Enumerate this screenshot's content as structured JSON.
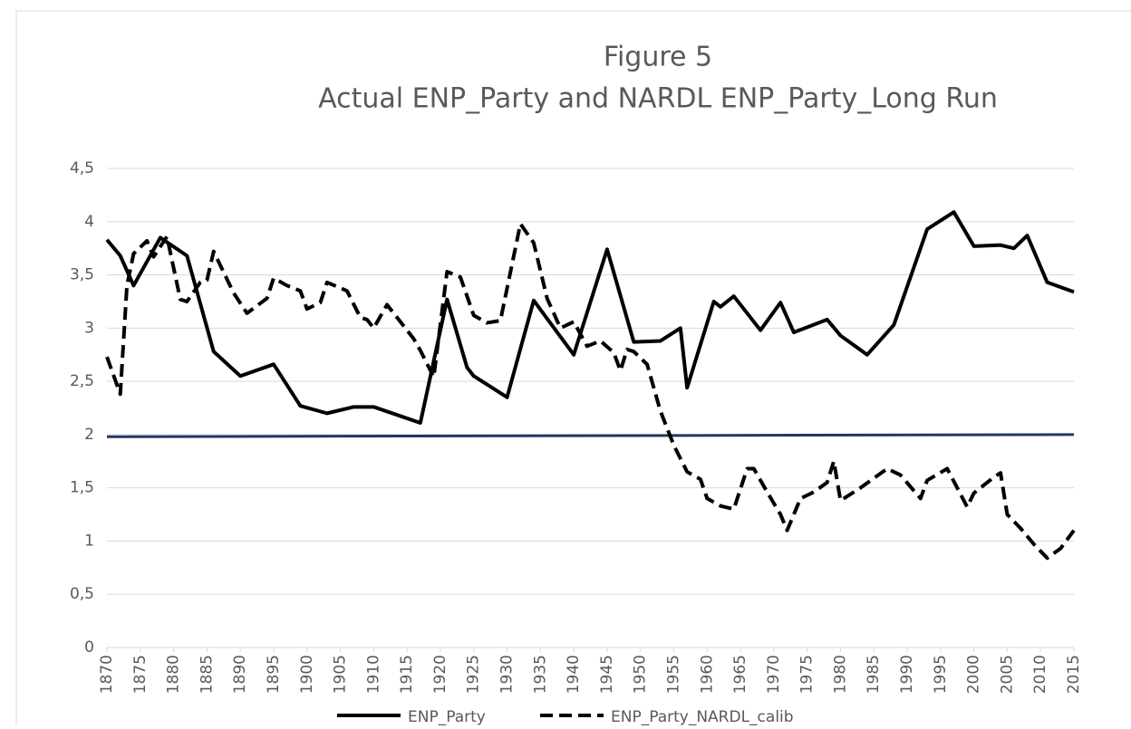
{
  "chart_data": {
    "type": "line",
    "title": "Figure 5",
    "subtitle": "Actual ENP_Party and NARDL ENP_Party_Long Run",
    "xlim": [
      1870,
      2015
    ],
    "xticks": [
      1870,
      1875,
      1880,
      1885,
      1890,
      1895,
      1900,
      1905,
      1910,
      1915,
      1920,
      1925,
      1930,
      1935,
      1940,
      1945,
      1950,
      1955,
      1960,
      1965,
      1970,
      1975,
      1980,
      1985,
      1990,
      1995,
      2000,
      2005,
      2010,
      2015
    ],
    "ylim": [
      0,
      4.5
    ],
    "yticks": [
      0,
      {
        "value": 0.5,
        "label": "0,5"
      },
      1,
      {
        "value": 1.5,
        "label": "1,5"
      },
      2,
      {
        "value": 2.5,
        "label": "2,5"
      },
      3,
      {
        "value": 3.5,
        "label": "3,5"
      },
      4,
      {
        "value": 4.5,
        "label": "4,5"
      }
    ],
    "grid": true,
    "legend": "bottom",
    "series": [
      {
        "name": "ENP_Party",
        "color": "#000000",
        "dash": false,
        "x": [
          1870,
          1872,
          1874,
          1878,
          1882,
          1886,
          1890,
          1895,
          1899,
          1903,
          1907,
          1910,
          1917,
          1921,
          1924,
          1925,
          1930,
          1934,
          1940,
          1945,
          1949,
          1953,
          1956,
          1957,
          1961,
          1962,
          1964,
          1968,
          1971,
          1973,
          1978,
          1980,
          1984,
          1988,
          1993,
          1997,
          2000,
          2004,
          2006,
          2008,
          2011,
          2015
        ],
        "values": [
          3.83,
          3.68,
          3.4,
          3.85,
          3.68,
          2.78,
          2.55,
          2.66,
          2.27,
          2.2,
          2.26,
          2.26,
          2.11,
          3.27,
          2.63,
          2.55,
          2.35,
          3.26,
          2.75,
          3.74,
          2.87,
          2.88,
          3.0,
          2.44,
          3.25,
          3.2,
          3.3,
          2.98,
          3.24,
          2.96,
          3.08,
          2.93,
          2.75,
          3.03,
          3.93,
          4.09,
          3.77,
          3.78,
          3.75,
          3.87,
          3.43,
          3.34
        ]
      },
      {
        "name": "ENP_Party_NARDL_calib",
        "color": "#000000",
        "dash": true,
        "x": [
          1870,
          1872,
          1873,
          1874,
          1876,
          1877,
          1879,
          1881,
          1882,
          1884,
          1885,
          1886,
          1889,
          1891,
          1894,
          1895,
          1897,
          1899,
          1900,
          1902,
          1903,
          1906,
          1908,
          1909,
          1910,
          1912,
          1914,
          1916,
          1917,
          1919,
          1921,
          1923,
          1925,
          1927,
          1929,
          1932,
          1934,
          1936,
          1938,
          1940,
          1942,
          1944,
          1946,
          1947,
          1948,
          1949,
          1951,
          1953,
          1955,
          1957,
          1959,
          1960,
          1962,
          1964,
          1966,
          1967,
          1969,
          1971,
          1972,
          1974,
          1976,
          1978,
          1979,
          1980,
          1983,
          1987,
          1989,
          1992,
          1993,
          1996,
          1999,
          2000,
          2003,
          2004,
          2005,
          2007,
          2009,
          2011,
          2013,
          2015
        ],
        "values": [
          2.73,
          2.38,
          3.4,
          3.7,
          3.82,
          3.67,
          3.86,
          3.27,
          3.25,
          3.43,
          3.45,
          3.72,
          3.33,
          3.14,
          3.28,
          3.47,
          3.4,
          3.35,
          3.18,
          3.24,
          3.43,
          3.35,
          3.1,
          3.08,
          3.0,
          3.22,
          3.06,
          2.9,
          2.79,
          2.54,
          3.53,
          3.48,
          3.12,
          3.05,
          3.07,
          3.98,
          3.8,
          3.28,
          3.0,
          3.06,
          2.83,
          2.88,
          2.77,
          2.6,
          2.8,
          2.78,
          2.66,
          2.22,
          1.9,
          1.65,
          1.58,
          1.4,
          1.33,
          1.3,
          1.68,
          1.68,
          1.46,
          1.25,
          1.1,
          1.4,
          1.46,
          1.55,
          1.75,
          1.38,
          1.5,
          1.68,
          1.62,
          1.4,
          1.57,
          1.68,
          1.32,
          1.45,
          1.6,
          1.64,
          1.25,
          1.12,
          0.97,
          0.84,
          0.93,
          1.1
        ]
      }
    ],
    "reference_line": {
      "color": "#1f3864",
      "x": [
        1870,
        2015
      ],
      "values": [
        1.98,
        2.0
      ]
    }
  }
}
